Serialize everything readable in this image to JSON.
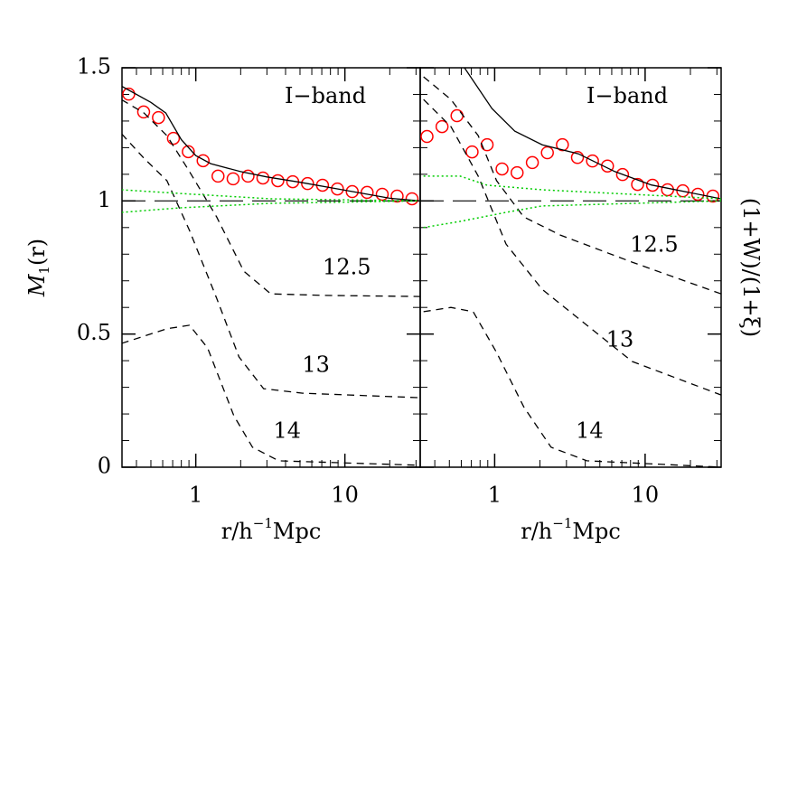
{
  "chart_data": [
    {
      "type": "line",
      "xscale": "log",
      "xlim": [
        0.32,
        32
      ],
      "ylim": [
        0,
        1.5
      ],
      "xticks": [
        1,
        10
      ],
      "xminorticks": [
        0.4,
        0.5,
        0.6,
        0.7,
        0.8,
        0.9,
        2,
        3,
        4,
        5,
        6,
        7,
        8,
        9,
        20,
        30
      ],
      "yticks": [
        0,
        0.5,
        1,
        1.5
      ],
      "yminorticks": [
        0.1,
        0.2,
        0.3,
        0.4,
        0.6,
        0.7,
        0.8,
        0.9,
        1.1,
        1.2,
        1.3,
        1.4
      ],
      "show_ytick_labels": true,
      "ylabel_parts": [
        "M",
        "1",
        "(r)"
      ],
      "ylabel_side": "left",
      "xlabel_parts": [
        "r/h",
        "−1",
        "Mpc"
      ],
      "annotations": [
        {
          "text": "I−band",
          "x": 7.4,
          "y": 1.39
        },
        {
          "text": "12.5",
          "x": 10.3,
          "y": 0.747
        },
        {
          "text": "13",
          "x": 6.4,
          "y": 0.38
        },
        {
          "text": "14",
          "x": 4.1,
          "y": 0.132
        }
      ],
      "reference_y": 1,
      "series": [
        {
          "style": "circles",
          "color": "#ff0000",
          "x": [
            0.355,
            0.447,
            0.562,
            0.708,
            0.891,
            1.12,
            1.41,
            1.78,
            2.24,
            2.82,
            3.55,
            4.47,
            5.62,
            7.08,
            8.91,
            11.2,
            14.1,
            17.8,
            22.4,
            28.2
          ],
          "values": [
            1.401,
            1.334,
            1.313,
            1.235,
            1.185,
            1.151,
            1.093,
            1.083,
            1.093,
            1.086,
            1.076,
            1.072,
            1.065,
            1.059,
            1.045,
            1.035,
            1.032,
            1.025,
            1.018,
            1.008
          ]
        },
        {
          "style": "solid",
          "color": "#000000",
          "x": [
            0.32,
            0.5,
            0.63,
            0.8,
            1.0,
            1.26,
            2,
            3,
            5,
            10,
            20,
            32
          ],
          "values": [
            1.43,
            1.37,
            1.33,
            1.23,
            1.17,
            1.14,
            1.11,
            1.09,
            1.07,
            1.04,
            1.01,
            1.0
          ]
        },
        {
          "style": "dashed",
          "color": "#000000",
          "x": [
            0.318,
            0.45,
            0.64,
            0.907,
            1.38,
            2.1,
            3.18,
            7.36,
            31.8
          ],
          "values": [
            1.38,
            1.33,
            1.245,
            1.11,
            0.94,
            0.736,
            0.651,
            0.645,
            0.641
          ]
        },
        {
          "style": "dashed",
          "color": "#000000",
          "x": [
            0.318,
            0.45,
            0.64,
            0.907,
            1.38,
            1.95,
            2.85,
            5.2,
            31.8
          ],
          "values": [
            1.252,
            1.16,
            1.076,
            0.889,
            0.635,
            0.414,
            0.295,
            0.278,
            0.261
          ]
        },
        {
          "style": "dashed",
          "color": "#000000",
          "x": [
            0.318,
            0.64,
            0.907,
            1.2,
            1.8,
            2.4,
            3.6,
            31.8
          ],
          "values": [
            0.465,
            0.52,
            0.533,
            0.448,
            0.193,
            0.075,
            0.024,
            0.007
          ]
        },
        {
          "style": "dotted",
          "color": "#00cc00",
          "x": [
            0.318,
            0.785,
            3.18,
            31.8
          ],
          "values": [
            1.042,
            1.028,
            1.008,
            1.0
          ]
        },
        {
          "style": "dotted",
          "color": "#00cc00",
          "x": [
            0.318,
            0.785,
            3.18,
            31.8
          ],
          "values": [
            0.957,
            0.974,
            0.991,
            1.0
          ]
        }
      ]
    },
    {
      "type": "line",
      "xscale": "log",
      "xlim": [
        0.32,
        32
      ],
      "ylim": [
        0,
        1.5
      ],
      "xticks": [
        1,
        10
      ],
      "xminorticks": [
        0.4,
        0.5,
        0.6,
        0.7,
        0.8,
        0.9,
        2,
        3,
        4,
        5,
        6,
        7,
        8,
        9,
        20,
        30
      ],
      "yticks": [
        0,
        0.5,
        1,
        1.5
      ],
      "yminorticks": [
        0.1,
        0.2,
        0.3,
        0.4,
        0.6,
        0.7,
        0.8,
        0.9,
        1.1,
        1.2,
        1.3,
        1.4
      ],
      "show_ytick_labels": false,
      "ylabel_parts": [
        "(1+W)/(1+ξ)"
      ],
      "ylabel_side": "right",
      "xlabel_parts": [
        "r/h",
        "−1",
        "Mpc"
      ],
      "annotations": [
        {
          "text": "I−band",
          "x": 7.6,
          "y": 1.39
        },
        {
          "text": "12.5",
          "x": 11.5,
          "y": 0.831
        },
        {
          "text": "13",
          "x": 6.8,
          "y": 0.475
        },
        {
          "text": "14",
          "x": 4.27,
          "y": 0.132
        }
      ],
      "reference_y": 1,
      "series": [
        {
          "style": "circles",
          "color": "#ff0000",
          "x": [
            0.355,
            0.447,
            0.562,
            0.708,
            0.891,
            1.12,
            1.41,
            1.78,
            2.24,
            2.82,
            3.55,
            4.47,
            5.62,
            7.08,
            8.91,
            11.2,
            14.1,
            17.8,
            22.4,
            28.2
          ],
          "values": [
            1.242,
            1.279,
            1.32,
            1.184,
            1.211,
            1.12,
            1.106,
            1.144,
            1.181,
            1.211,
            1.163,
            1.15,
            1.131,
            1.099,
            1.062,
            1.059,
            1.042,
            1.038,
            1.025,
            1.018
          ]
        },
        {
          "style": "solid",
          "color": "#000000",
          "x": [
            0.63,
            0.96,
            1.36,
            2.07,
            3.6,
            6.3,
            11,
            32
          ],
          "values": [
            1.5,
            1.347,
            1.262,
            1.211,
            1.177,
            1.11,
            1.06,
            1.008
          ]
        },
        {
          "style": "dashed",
          "color": "#000000",
          "x": [
            0.337,
            0.512,
            0.778,
            1.03,
            1.56,
            2.73,
            8.2,
            32
          ],
          "values": [
            1.466,
            1.381,
            1.245,
            1.076,
            0.94,
            0.872,
            0.77,
            0.651
          ]
        },
        {
          "style": "dashed",
          "color": "#000000",
          "x": [
            0.337,
            0.512,
            0.778,
            1.19,
            2.07,
            4.1,
            8.2,
            32
          ],
          "values": [
            1.381,
            1.279,
            1.093,
            0.838,
            0.668,
            0.533,
            0.397,
            0.271
          ]
        },
        {
          "style": "dashed",
          "color": "#000000",
          "x": [
            0.337,
            0.512,
            0.72,
            1.03,
            1.56,
            2.37,
            4.1,
            32
          ],
          "values": [
            0.584,
            0.6,
            0.584,
            0.431,
            0.227,
            0.075,
            0.024,
            0.0
          ]
        },
        {
          "style": "dotted",
          "color": "#00cc00",
          "x": [
            0.337,
            0.59,
            0.89,
            2.07,
            32
          ],
          "values": [
            1.093,
            1.093,
            1.059,
            1.042,
            1.008
          ]
        },
        {
          "style": "dotted",
          "color": "#00cc00",
          "x": [
            0.337,
            0.59,
            1.19,
            2.07,
            32
          ],
          "values": [
            0.9,
            0.923,
            0.957,
            0.981,
            1.0
          ]
        }
      ]
    }
  ]
}
